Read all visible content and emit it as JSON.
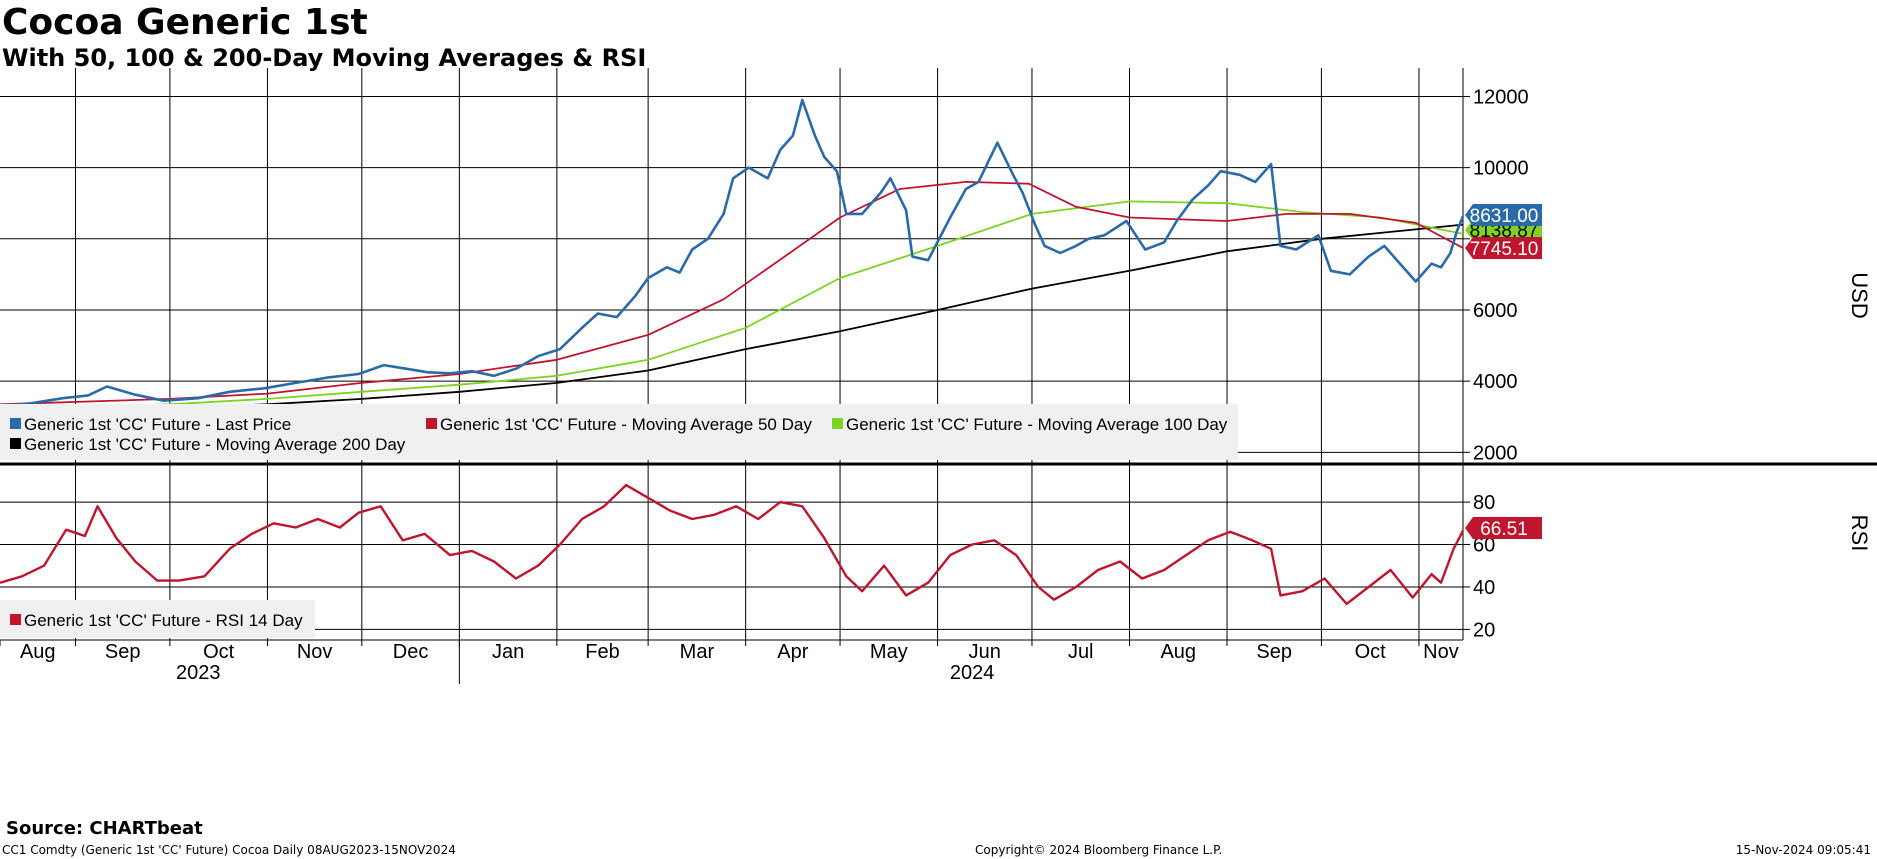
{
  "title": "Cocoa Generic 1st",
  "subtitle": "With 50, 100 & 200-Day Moving Averages & RSI",
  "source": "Source: CHARTbeat",
  "footer_left": "CC1 Comdty (Generic 1st 'CC' Future) Cocoa  Daily 08AUG2023-15NOV2024",
  "footer_center": "Copyright© 2024 Bloomberg Finance L.P.",
  "footer_right": "15-Nov-2024 09:05:41",
  "colors": {
    "price": "#2a6aa8",
    "ma50": "#c0152f",
    "ma100": "#7ed321",
    "ma200": "#000000",
    "rsi": "#c0152f"
  },
  "chart_data": [
    {
      "type": "line",
      "ylabel": "USD",
      "ylim": [
        1700,
        12800
      ],
      "yticks": [
        2000,
        4000,
        6000,
        8000,
        10000,
        12000
      ],
      "grid": true,
      "legend": "bottom-left",
      "xlim": [
        "2023-08-08",
        "2024-11-15"
      ],
      "month_ticks": [
        "Aug",
        "Sep",
        "Oct",
        "Nov",
        "Dec",
        "Jan",
        "Feb",
        "Mar",
        "Apr",
        "May",
        "Jun",
        "Jul",
        "Aug",
        "Sep",
        "Oct",
        "Nov"
      ],
      "year_labels": [
        "2023",
        "2024"
      ],
      "last_value_labels": [
        "8631.00",
        "8138.87",
        "7745.10"
      ],
      "series": [
        {
          "name": "Generic 1st 'CC' Future - Last Price",
          "key": "price",
          "points": [
            [
              "2023-08-08",
              3300
            ],
            [
              "2023-08-18",
              3380
            ],
            [
              "2023-08-28",
              3520
            ],
            [
              "2023-09-05",
              3600
            ],
            [
              "2023-09-11",
              3850
            ],
            [
              "2023-09-20",
              3620
            ],
            [
              "2023-09-29",
              3450
            ],
            [
              "2023-10-10",
              3520
            ],
            [
              "2023-10-20",
              3700
            ],
            [
              "2023-10-31",
              3800
            ],
            [
              "2023-11-10",
              3950
            ],
            [
              "2023-11-20",
              4100
            ],
            [
              "2023-11-30",
              4200
            ],
            [
              "2023-12-08",
              4450
            ],
            [
              "2023-12-15",
              4350
            ],
            [
              "2023-12-22",
              4250
            ],
            [
              "2023-12-29",
              4220
            ],
            [
              "2024-01-05",
              4280
            ],
            [
              "2024-01-12",
              4150
            ],
            [
              "2024-01-19",
              4350
            ],
            [
              "2024-01-26",
              4700
            ],
            [
              "2024-02-02",
              4900
            ],
            [
              "2024-02-09",
              5500
            ],
            [
              "2024-02-14",
              5900
            ],
            [
              "2024-02-20",
              5800
            ],
            [
              "2024-02-26",
              6400
            ],
            [
              "2024-03-01",
              6900
            ],
            [
              "2024-03-07",
              7200
            ],
            [
              "2024-03-11",
              7050
            ],
            [
              "2024-03-15",
              7700
            ],
            [
              "2024-03-20",
              8000
            ],
            [
              "2024-03-25",
              8700
            ],
            [
              "2024-03-28",
              9700
            ],
            [
              "2024-04-02",
              10000
            ],
            [
              "2024-04-08",
              9700
            ],
            [
              "2024-04-12",
              10500
            ],
            [
              "2024-04-16",
              10900
            ],
            [
              "2024-04-19",
              11900
            ],
            [
              "2024-04-23",
              10900
            ],
            [
              "2024-04-26",
              10300
            ],
            [
              "2024-04-30",
              9900
            ],
            [
              "2024-05-03",
              8700
            ],
            [
              "2024-05-08",
              8700
            ],
            [
              "2024-05-14",
              9300
            ],
            [
              "2024-05-17",
              9700
            ],
            [
              "2024-05-22",
              8800
            ],
            [
              "2024-05-24",
              7500
            ],
            [
              "2024-05-29",
              7400
            ],
            [
              "2024-06-05",
              8600
            ],
            [
              "2024-06-10",
              9400
            ],
            [
              "2024-06-14",
              9600
            ],
            [
              "2024-06-20",
              10700
            ],
            [
              "2024-06-25",
              9800
            ],
            [
              "2024-06-28",
              9300
            ],
            [
              "2024-07-02",
              8400
            ],
            [
              "2024-07-05",
              7800
            ],
            [
              "2024-07-10",
              7600
            ],
            [
              "2024-07-15",
              7800
            ],
            [
              "2024-07-19",
              8000
            ],
            [
              "2024-07-24",
              8100
            ],
            [
              "2024-07-31",
              8500
            ],
            [
              "2024-08-06",
              7700
            ],
            [
              "2024-08-12",
              7900
            ],
            [
              "2024-08-16",
              8500
            ],
            [
              "2024-08-21",
              9100
            ],
            [
              "2024-08-26",
              9500
            ],
            [
              "2024-08-30",
              9900
            ],
            [
              "2024-09-05",
              9800
            ],
            [
              "2024-09-10",
              9600
            ],
            [
              "2024-09-15",
              10100
            ],
            [
              "2024-09-18",
              7800
            ],
            [
              "2024-09-23",
              7700
            ],
            [
              "2024-09-30",
              8100
            ],
            [
              "2024-10-04",
              7100
            ],
            [
              "2024-10-10",
              7000
            ],
            [
              "2024-10-16",
              7500
            ],
            [
              "2024-10-21",
              7800
            ],
            [
              "2024-10-25",
              7400
            ],
            [
              "2024-10-31",
              6800
            ],
            [
              "2024-11-05",
              7300
            ],
            [
              "2024-11-08",
              7200
            ],
            [
              "2024-11-11",
              7600
            ],
            [
              "2024-11-13",
              8200
            ],
            [
              "2024-11-15",
              8631
            ]
          ]
        },
        {
          "name": "Generic 1st 'CC' Future - Moving Average 50 Day",
          "key": "ma50",
          "points": [
            [
              "2023-08-08",
              3350
            ],
            [
              "2023-10-01",
              3500
            ],
            [
              "2023-11-01",
              3650
            ],
            [
              "2023-12-01",
              3950
            ],
            [
              "2024-01-01",
              4200
            ],
            [
              "2024-02-01",
              4600
            ],
            [
              "2024-03-01",
              5300
            ],
            [
              "2024-03-25",
              6300
            ],
            [
              "2024-04-15",
              7600
            ],
            [
              "2024-05-01",
              8600
            ],
            [
              "2024-05-20",
              9400
            ],
            [
              "2024-06-10",
              9600
            ],
            [
              "2024-06-30",
              9550
            ],
            [
              "2024-07-15",
              8900
            ],
            [
              "2024-08-01",
              8600
            ],
            [
              "2024-09-01",
              8500
            ],
            [
              "2024-09-20",
              8700
            ],
            [
              "2024-10-10",
              8700
            ],
            [
              "2024-10-31",
              8450
            ],
            [
              "2024-11-15",
              7745
            ]
          ]
        },
        {
          "name": "Generic 1st 'CC' Future - Moving Average 100 Day",
          "key": "ma100",
          "points": [
            [
              "2023-08-08",
              3200
            ],
            [
              "2023-10-01",
              3350
            ],
            [
              "2023-11-01",
              3500
            ],
            [
              "2023-12-01",
              3700
            ],
            [
              "2024-01-01",
              3900
            ],
            [
              "2024-02-01",
              4150
            ],
            [
              "2024-03-01",
              4600
            ],
            [
              "2024-04-01",
              5500
            ],
            [
              "2024-05-01",
              6900
            ],
            [
              "2024-06-01",
              7800
            ],
            [
              "2024-07-01",
              8700
            ],
            [
              "2024-08-01",
              9050
            ],
            [
              "2024-09-01",
              9000
            ],
            [
              "2024-09-25",
              8750
            ],
            [
              "2024-10-20",
              8600
            ],
            [
              "2024-11-15",
              8139
            ]
          ]
        },
        {
          "name": "Generic 1st 'CC' Future - Moving Average 200 Day",
          "key": "ma200",
          "points": [
            [
              "2023-08-08",
              3150
            ],
            [
              "2023-10-01",
              3250
            ],
            [
              "2023-11-01",
              3350
            ],
            [
              "2023-12-01",
              3500
            ],
            [
              "2024-01-01",
              3700
            ],
            [
              "2024-02-01",
              3950
            ],
            [
              "2024-03-01",
              4300
            ],
            [
              "2024-04-01",
              4900
            ],
            [
              "2024-05-01",
              5400
            ],
            [
              "2024-06-01",
              6000
            ],
            [
              "2024-07-01",
              6600
            ],
            [
              "2024-08-01",
              7100
            ],
            [
              "2024-09-01",
              7650
            ],
            [
              "2024-10-01",
              8000
            ],
            [
              "2024-11-15",
              8400
            ]
          ]
        }
      ]
    },
    {
      "type": "line",
      "ylabel": "RSI",
      "ylim": [
        15,
        97
      ],
      "yticks": [
        20,
        40,
        60,
        80
      ],
      "grid": true,
      "legend": "bottom-left",
      "last_value_labels": [
        "66.51"
      ],
      "series": [
        {
          "name": "Generic 1st 'CC' Future - RSI 14 Day",
          "key": "rsi",
          "points": [
            [
              "2023-08-08",
              42
            ],
            [
              "2023-08-15",
              45
            ],
            [
              "2023-08-22",
              50
            ],
            [
              "2023-08-29",
              67
            ],
            [
              "2023-09-04",
              64
            ],
            [
              "2023-09-08",
              78
            ],
            [
              "2023-09-14",
              63
            ],
            [
              "2023-09-20",
              52
            ],
            [
              "2023-09-27",
              43
            ],
            [
              "2023-10-04",
              43
            ],
            [
              "2023-10-12",
              45
            ],
            [
              "2023-10-20",
              58
            ],
            [
              "2023-10-27",
              65
            ],
            [
              "2023-11-03",
              70
            ],
            [
              "2023-11-10",
              68
            ],
            [
              "2023-11-17",
              72
            ],
            [
              "2023-11-24",
              68
            ],
            [
              "2023-11-30",
              75
            ],
            [
              "2023-12-07",
              78
            ],
            [
              "2023-12-14",
              62
            ],
            [
              "2023-12-21",
              65
            ],
            [
              "2023-12-29",
              55
            ],
            [
              "2024-01-05",
              57
            ],
            [
              "2024-01-12",
              52
            ],
            [
              "2024-01-19",
              44
            ],
            [
              "2024-01-26",
              50
            ],
            [
              "2024-02-02",
              60
            ],
            [
              "2024-02-09",
              72
            ],
            [
              "2024-02-16",
              78
            ],
            [
              "2024-02-23",
              88
            ],
            [
              "2024-03-01",
              82
            ],
            [
              "2024-03-08",
              76
            ],
            [
              "2024-03-15",
              72
            ],
            [
              "2024-03-22",
              74
            ],
            [
              "2024-03-29",
              78
            ],
            [
              "2024-04-05",
              72
            ],
            [
              "2024-04-12",
              80
            ],
            [
              "2024-04-19",
              78
            ],
            [
              "2024-04-26",
              63
            ],
            [
              "2024-05-03",
              45
            ],
            [
              "2024-05-08",
              38
            ],
            [
              "2024-05-15",
              50
            ],
            [
              "2024-05-22",
              36
            ],
            [
              "2024-05-29",
              42
            ],
            [
              "2024-06-05",
              55
            ],
            [
              "2024-06-12",
              60
            ],
            [
              "2024-06-19",
              62
            ],
            [
              "2024-06-26",
              55
            ],
            [
              "2024-07-03",
              40
            ],
            [
              "2024-07-08",
              34
            ],
            [
              "2024-07-15",
              40
            ],
            [
              "2024-07-22",
              48
            ],
            [
              "2024-07-29",
              52
            ],
            [
              "2024-08-05",
              44
            ],
            [
              "2024-08-12",
              48
            ],
            [
              "2024-08-19",
              55
            ],
            [
              "2024-08-26",
              62
            ],
            [
              "2024-09-02",
              66
            ],
            [
              "2024-09-09",
              62
            ],
            [
              "2024-09-15",
              58
            ],
            [
              "2024-09-18",
              36
            ],
            [
              "2024-09-25",
              38
            ],
            [
              "2024-10-02",
              44
            ],
            [
              "2024-10-09",
              32
            ],
            [
              "2024-10-16",
              40
            ],
            [
              "2024-10-23",
              48
            ],
            [
              "2024-10-30",
              35
            ],
            [
              "2024-11-05",
              46
            ],
            [
              "2024-11-08",
              42
            ],
            [
              "2024-11-12",
              58
            ],
            [
              "2024-11-15",
              66.51
            ]
          ]
        }
      ]
    }
  ]
}
